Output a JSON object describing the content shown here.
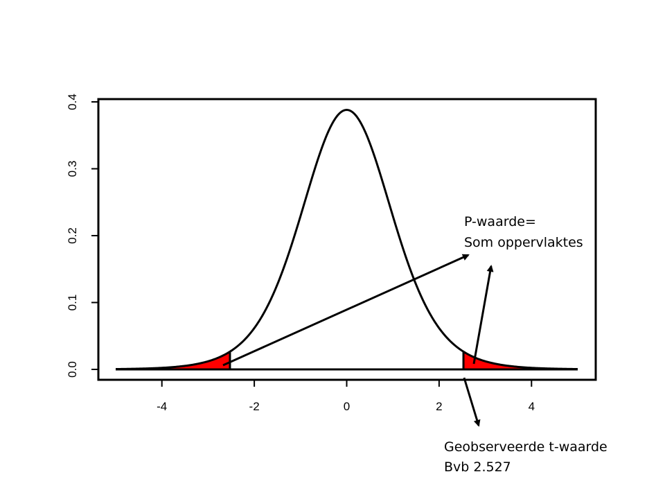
{
  "chart_data": {
    "type": "line",
    "title": "",
    "xlabel": "",
    "ylabel": "",
    "xlim": [
      -5,
      5
    ],
    "ylim": [
      0,
      0.4
    ],
    "x_ticks": [
      "-4",
      "-2",
      "0",
      "2",
      "4"
    ],
    "y_ticks": [
      "0.0",
      "0.1",
      "0.2",
      "0.3",
      "0.4"
    ],
    "series": [
      {
        "distribution": "t",
        "df": 9,
        "x": [
          -5,
          -4,
          -3,
          -2.527,
          -2,
          -1,
          0,
          1,
          2,
          2.527,
          3,
          4,
          5
        ],
        "y": [
          0.001,
          0.0039,
          0.0114,
          0.025,
          0.0611,
          0.2303,
          0.388,
          0.2303,
          0.0611,
          0.025,
          0.0114,
          0.0039,
          0.001
        ]
      }
    ],
    "shaded_regions": [
      {
        "from": -5,
        "to": -2.527,
        "color": "#ff0000"
      },
      {
        "from": 2.527,
        "to": 5,
        "color": "#ff0000"
      }
    ],
    "colors": {
      "curve": "#000000",
      "shade": "#ff0000"
    },
    "annotations": [
      {
        "lines": [
          "P-waarde=",
          "Som oppervlaktes"
        ]
      },
      {
        "lines": [
          "Geobserveerde t-waarde",
          "Bvb 2.527"
        ]
      }
    ]
  }
}
